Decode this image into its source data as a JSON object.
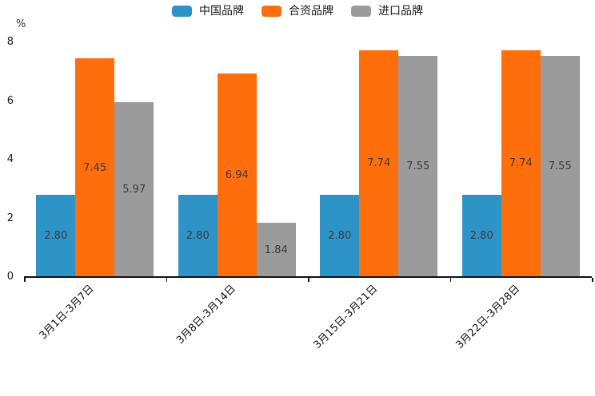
{
  "chart_data": {
    "type": "bar",
    "title": "",
    "ylabel": "%",
    "xlabel": "",
    "ylim": [
      0,
      8
    ],
    "yticks": [
      0,
      2,
      4,
      6,
      8
    ],
    "grid": false,
    "legend_position": "top",
    "categories": [
      "3月1日-3月7日",
      "3月8日-3月14日",
      "3月15日-3月21日",
      "3月22日-3月28日"
    ],
    "series": [
      {
        "name": "中国品牌",
        "color": "#2E94C8",
        "values": [
          2.8,
          2.8,
          2.8,
          2.8
        ],
        "labels": [
          "2.80",
          "2.80",
          "2.80",
          "2.80"
        ]
      },
      {
        "name": "合资品牌",
        "color": "#FF6E0C",
        "values": [
          7.45,
          6.94,
          7.74,
          7.74
        ],
        "labels": [
          "7.45",
          "6.94",
          "7.74",
          "7.74"
        ]
      },
      {
        "name": "进口品牌",
        "color": "#9B9B9B",
        "values": [
          5.97,
          1.84,
          7.55,
          7.55
        ],
        "labels": [
          "5.97",
          "1.84",
          "7.55",
          "7.55"
        ]
      }
    ],
    "colors": {
      "axis": "#111111",
      "tick_label": "#1a1a1a",
      "bar_label": "#3c3c3c"
    }
  }
}
